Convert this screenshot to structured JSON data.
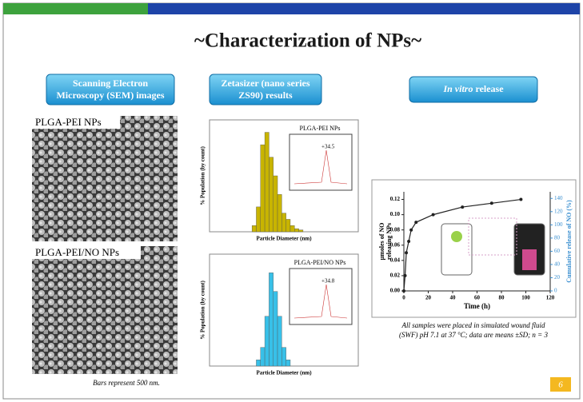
{
  "slide": {
    "title": "~Characterization of NPs~",
    "page_number": "6",
    "sections": [
      {
        "header": [
          "Scanning Electron",
          "Microscopy (SEM) images"
        ]
      },
      {
        "header": [
          "Zetasizer (nano series",
          "ZS90) results"
        ]
      },
      {
        "header": [
          "In vitro",
          " release"
        ]
      }
    ],
    "sem": {
      "images": [
        "PLGA-PEI NPs",
        "PLGA-PEI/NO NPs"
      ],
      "caption": "Bars represent 500 nm."
    },
    "histograms": [
      {
        "type": "histogram",
        "inset_title": "PLGA-PEI NPs",
        "inset_value": "+34.5",
        "color": "#c8b400",
        "x_label": "Particle Diameter (nm)",
        "y_label": "% Population (by count)",
        "bins": [
          100,
          110,
          120,
          130,
          140,
          150,
          160,
          170,
          180,
          190,
          200,
          210,
          220
        ],
        "values": [
          1,
          4,
          14,
          16,
          12,
          9,
          6,
          3,
          2,
          1,
          0.5,
          0.3
        ],
        "xlim": [
          0,
          350
        ],
        "ylim": [
          0,
          18
        ]
      },
      {
        "type": "histogram",
        "inset_title": "PLGA-PEI/NO NPs",
        "inset_value": "+34.8",
        "color": "#38c0e8",
        "x_label": "Particle Diameter (nm)",
        "y_label": "% Population (by count)",
        "bins": [
          110,
          120,
          130,
          140,
          150,
          160,
          170,
          180,
          190
        ],
        "values": [
          1,
          3,
          8,
          15,
          12,
          8,
          3,
          1
        ],
        "xlim": [
          0,
          350
        ],
        "ylim": [
          0,
          18
        ]
      }
    ],
    "release_chart": {
      "type": "line",
      "x_label": "Time (h)",
      "y_label": [
        "µmoles of NO",
        "releasing NPs"
      ],
      "y2_label": "Cumulative release of NO (%)",
      "x": [
        0,
        1,
        2,
        4,
        6,
        10,
        24,
        48,
        72,
        96
      ],
      "values": [
        0,
        0.02,
        0.05,
        0.065,
        0.08,
        0.09,
        0.1,
        0.11,
        0.115,
        0.12
      ],
      "color": "#222222",
      "xlim": [
        0,
        120
      ],
      "xticks": [
        0,
        20,
        40,
        60,
        80,
        100,
        120
      ],
      "ylim": [
        0,
        0.13
      ],
      "yticks": [
        {
          "value": 0,
          "label": "0.00"
        },
        {
          "value": 0.02,
          "label": "0.02"
        },
        {
          "value": 0.04,
          "label": "0.04"
        },
        {
          "value": 0.06,
          "label": "0.06"
        },
        {
          "value": 0.08,
          "label": "0.08"
        },
        {
          "value": 0.1,
          "label": "0.10"
        },
        {
          "value": 0.12,
          "label": "0.12"
        }
      ],
      "y2lim": [
        0,
        150
      ],
      "y2ticks": [
        0,
        20,
        40,
        60,
        80,
        100,
        120,
        140
      ]
    },
    "footnote": [
      "All samples were placed in simulated wound fluid",
      "(SWF) pH 7.1 at 37 °C; data are means ±SD; n = 3"
    ]
  }
}
